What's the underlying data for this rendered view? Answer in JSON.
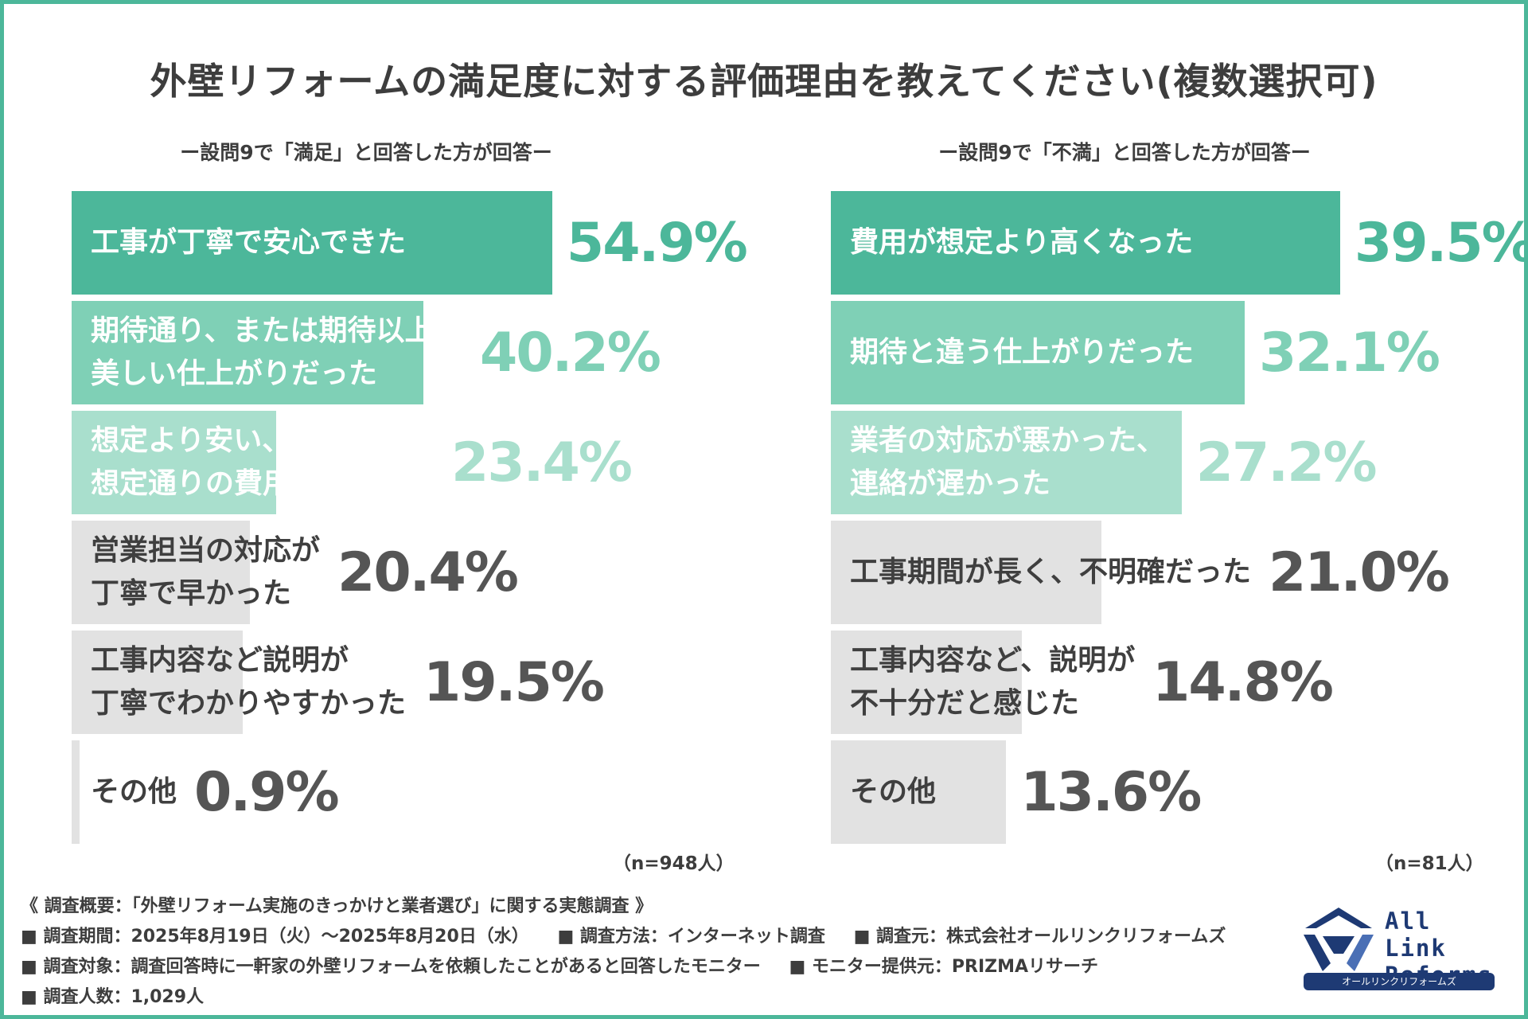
{
  "title": "外壁リフォームの満足度に対する評価理由を教えてください(複数選択可)",
  "chart_data": [
    {
      "type": "bar",
      "orientation": "horizontal",
      "subtitle": "ー設問9で「満足」と回答した方が回答ー",
      "categories": [
        "工事が丁寧で安心できた",
        "期待通り、または期待以上の\n美しい仕上がりだった",
        "想定より安い、または\n想定通りの費用で収まった",
        "営業担当の対応が\n丁寧で早かった",
        "工事内容など説明が\n丁寧でわかりやすかった",
        "その他"
      ],
      "values": [
        54.9,
        40.2,
        23.4,
        20.4,
        19.5,
        0.9
      ],
      "value_labels": [
        "54.9%",
        "40.2%",
        "23.4%",
        "20.4%",
        "19.5%",
        "0.9%"
      ],
      "n_note": "（n=948人）",
      "bar_colors": [
        "#4cb79a",
        "#7fd0b6",
        "#a9dfcd",
        "#e2e2e2",
        "#e2e2e2",
        "#e2e2e2"
      ],
      "label_colors": [
        "#ffffff",
        "#ffffff",
        "#ffffff",
        "#3f3f3f",
        "#3f3f3f",
        "#3f3f3f"
      ],
      "value_colors": [
        "#4cb79a",
        "#7fd0b6",
        "#a9dfcd",
        "#555555",
        "#555555",
        "#555555"
      ]
    },
    {
      "type": "bar",
      "orientation": "horizontal",
      "subtitle": "ー設問9で「不満」と回答した方が回答ー",
      "categories": [
        "費用が想定より高くなった",
        "期待と違う仕上がりだった",
        "業者の対応が悪かった、\n連絡が遅かった",
        "工事期間が長く、不明確だった",
        "工事内容など、説明が\n不十分だと感じた",
        "その他"
      ],
      "values": [
        39.5,
        32.1,
        27.2,
        21.0,
        14.8,
        13.6
      ],
      "value_labels": [
        "39.5%",
        "32.1%",
        "27.2%",
        "21.0%",
        "14.8%",
        "13.6%"
      ],
      "n_note": "（n=81人）",
      "bar_colors": [
        "#4cb79a",
        "#7fd0b6",
        "#a9dfcd",
        "#e2e2e2",
        "#e2e2e2",
        "#e2e2e2"
      ],
      "label_colors": [
        "#ffffff",
        "#ffffff",
        "#ffffff",
        "#3f3f3f",
        "#3f3f3f",
        "#3f3f3f"
      ],
      "value_colors": [
        "#4cb79a",
        "#7fd0b6",
        "#a9dfcd",
        "#555555",
        "#555555",
        "#555555"
      ]
    }
  ],
  "survey": {
    "heading": "《 調査概要：「外壁リフォーム実施のきっかけと業者選び」に関する実態調査 》",
    "lines": [
      [
        "■ 調査期間：2025年8月19日（火）～2025年8月20日（水）",
        "■ 調査方法：インターネット調査",
        "■ 調査元：株式会社オールリンクリフォームズ"
      ],
      [
        "■ 調査対象：調査回答時に一軒家の外壁リフォームを依頼したことがあると回答したモニター",
        "■ モニター提供元：PRIZMAリサーチ"
      ],
      [
        "■ 調査人数：1,029人"
      ]
    ]
  },
  "logo": {
    "name": "All Link\nReforms",
    "band": "オールリンクリフォームズ",
    "color": "#1e3a74"
  }
}
